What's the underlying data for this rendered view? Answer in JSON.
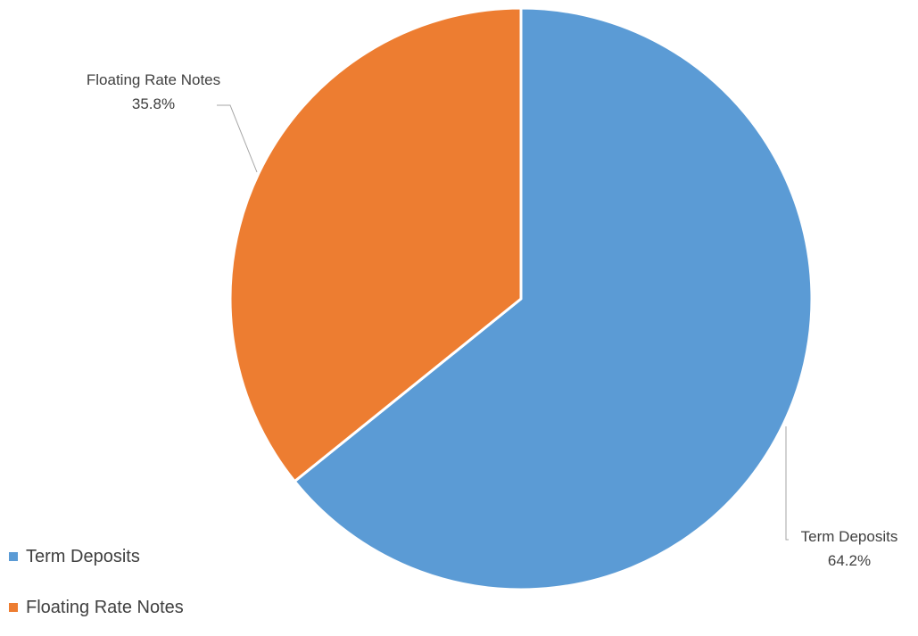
{
  "chart_data": {
    "type": "pie",
    "title": "",
    "categories": [
      "Term Deposits",
      "Floating Rate Notes"
    ],
    "values": [
      64.2,
      35.8
    ],
    "data_labels": [
      {
        "category": "Term Deposits",
        "value": "64.2%"
      },
      {
        "category": "Floating Rate Notes",
        "value": "35.8%"
      }
    ],
    "colors": [
      "#5b9bd5",
      "#ed7d31"
    ],
    "start": "12 o'clock, clockwise",
    "legend": {
      "placement": "bottom-left",
      "entries": [
        "Term Deposits",
        "Floating Rate Notes"
      ]
    }
  }
}
